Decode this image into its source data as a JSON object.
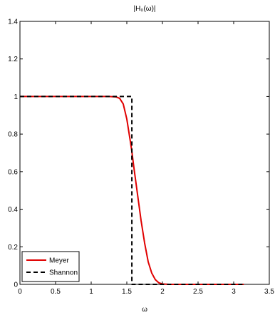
{
  "chart_data": {
    "type": "line",
    "title": "|H₀(ω)|",
    "xlabel": "ω",
    "ylabel": "",
    "xlim": [
      0,
      3.5
    ],
    "ylim": [
      0,
      1.4
    ],
    "xticks": [
      0,
      0.5,
      1,
      1.5,
      2,
      2.5,
      3,
      3.5
    ],
    "xtick_labels": [
      "0",
      "0.5",
      "1",
      "1.5",
      "2",
      "2.5",
      "3",
      "3.5"
    ],
    "yticks": [
      0,
      0.2,
      0.4,
      0.6,
      0.8,
      1,
      1.2,
      1.4
    ],
    "ytick_labels": [
      "0",
      "0.2",
      "0.4",
      "0.6",
      "0.8",
      "1",
      "1.2",
      "1.4"
    ],
    "grid": false,
    "legend_position": "bottom-left",
    "series": [
      {
        "name": "Meyer",
        "color": "#e00000",
        "style": "solid",
        "x": [
          0,
          1.0472,
          1.15,
          1.25,
          1.35,
          1.4,
          1.45,
          1.5,
          1.55,
          1.5708,
          1.6,
          1.65,
          1.7,
          1.75,
          1.8,
          1.85,
          1.9,
          1.95,
          2.0,
          2.0944,
          3.1416
        ],
        "y": [
          1,
          1,
          1,
          1,
          0.998,
          0.99,
          0.96,
          0.88,
          0.76,
          0.707,
          0.62,
          0.48,
          0.34,
          0.22,
          0.12,
          0.06,
          0.025,
          0.008,
          0.002,
          0,
          0
        ]
      },
      {
        "name": "Shannon",
        "color": "#000000",
        "style": "dashed",
        "x": [
          0,
          1.5708,
          1.5708,
          3.1416
        ],
        "y": [
          1,
          1,
          0,
          0
        ]
      }
    ]
  }
}
